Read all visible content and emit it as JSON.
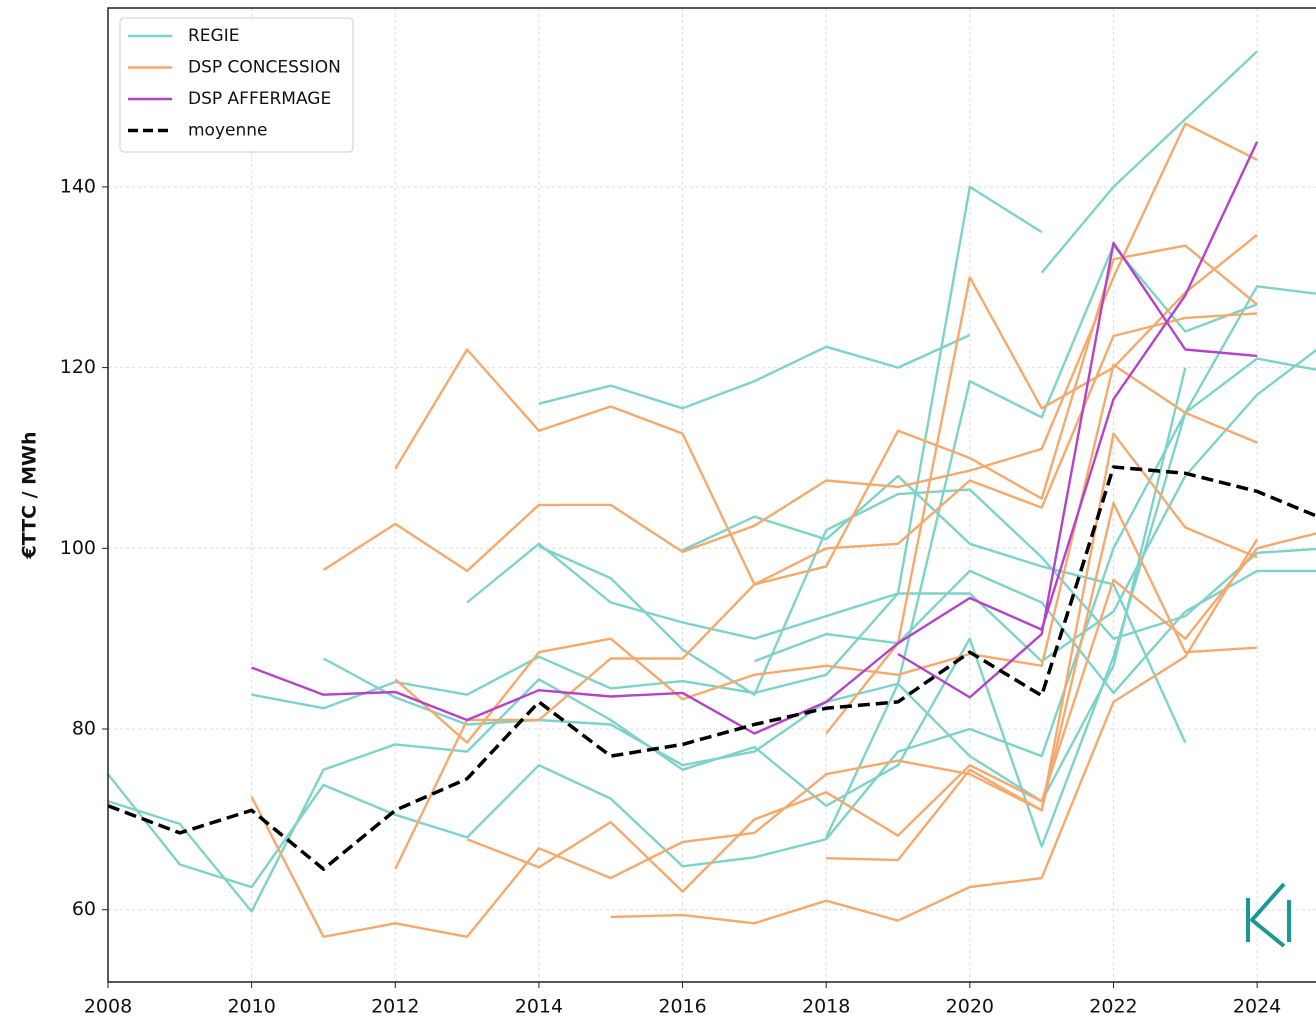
{
  "chart_data": {
    "type": "line",
    "ylabel": "€TTC / MWh",
    "x": [
      2008,
      2009,
      2010,
      2011,
      2012,
      2013,
      2014,
      2015,
      2016,
      2017,
      2018,
      2019,
      2020,
      2021,
      2022,
      2023,
      2024,
      2025
    ],
    "xlim": [
      2008,
      2024.82
    ],
    "xticks": [
      2008,
      2010,
      2012,
      2014,
      2016,
      2018,
      2020,
      2022,
      2024
    ],
    "ylim": [
      52,
      159.8
    ],
    "yticks": [
      60,
      80,
      100,
      120,
      140
    ],
    "grid": true,
    "legend": "upper left",
    "series": [
      {
        "name": "REGIE",
        "color": "#7dd3c9",
        "linestyle": "solid",
        "lines": [
          [
            null,
            null,
            null,
            null,
            null,
            null,
            116,
            118,
            115.5,
            118.5,
            122.3,
            120,
            123.6,
            null,
            null,
            null,
            null,
            null
          ],
          [
            75,
            65,
            62.5,
            73.8,
            70.5,
            68,
            76,
            72.3,
            64.8,
            65.8,
            67.8,
            77.5,
            80,
            77,
            100,
            115,
            121,
            119.5
          ],
          [
            72,
            69.5,
            59.8,
            75.5,
            78.3,
            77.5,
            85.5,
            81,
            75.5,
            78,
            71.5,
            76,
            90,
            67,
            88,
            115,
            129,
            128
          ],
          [
            null,
            null,
            83.8,
            82.3,
            85.2,
            83.8,
            88,
            84.5,
            85.3,
            84,
            86,
            95,
            140,
            135,
            null,
            null,
            null,
            null
          ],
          [
            null,
            null,
            null,
            null,
            null,
            null,
            null,
            null,
            null,
            null,
            null,
            null,
            null,
            130.5,
            140,
            147.5,
            155,
            null
          ],
          [
            null,
            null,
            null,
            87.8,
            83.5,
            80.5,
            81,
            80.5,
            76,
            77.5,
            83,
            85,
            118.5,
            114.5,
            133.5,
            124,
            127,
            null
          ],
          [
            null,
            null,
            null,
            null,
            null,
            94,
            100.5,
            94,
            91.8,
            90,
            92.5,
            95,
            95,
            87.5,
            93,
            108,
            117,
            123
          ],
          [
            null,
            null,
            null,
            null,
            null,
            null,
            100.2,
            96.7,
            88.8,
            83.8,
            102,
            106,
            106.5,
            99,
            90,
            92.5,
            99.5,
            100
          ],
          [
            null,
            null,
            null,
            null,
            null,
            null,
            null,
            null,
            99.8,
            103.5,
            101,
            108,
            100.5,
            98,
            96,
            78.5,
            null,
            null
          ],
          [
            null,
            null,
            null,
            null,
            null,
            null,
            null,
            null,
            null,
            87.5,
            90.5,
            89.5,
            97.5,
            94,
            84,
            93,
            97.5,
            97.5
          ],
          [
            null,
            null,
            null,
            null,
            null,
            null,
            null,
            null,
            null,
            null,
            68,
            85,
            77,
            72,
            87,
            120,
            null,
            null
          ]
        ]
      },
      {
        "name": "DSP CONCESSION",
        "color": "#f5a96c",
        "linestyle": "solid",
        "lines": [
          [
            null,
            null,
            null,
            null,
            108.8,
            122,
            113,
            115.7,
            112.7,
            96,
            100,
            100.5,
            107.5,
            104.5,
            123.5,
            125.5,
            126,
            null
          ],
          [
            null,
            null,
            null,
            97.6,
            102.7,
            97.5,
            104.8,
            104.8,
            99.6,
            102.5,
            107.5,
            106.8,
            108.6,
            111,
            130,
            147,
            143,
            null
          ],
          [
            null,
            null,
            72.5,
            57,
            58.5,
            57,
            66.8,
            63.5,
            67.5,
            68.5,
            75,
            76.5,
            75,
            71,
            105,
            88.5,
            89,
            null
          ],
          [
            null,
            null,
            null,
            null,
            64.5,
            81,
            81,
            87.8,
            87.8,
            96,
            98,
            113,
            110,
            105.5,
            132,
            133.5,
            127,
            null
          ],
          [
            null,
            null,
            null,
            null,
            null,
            67.8,
            64.7,
            69.7,
            62,
            70,
            73,
            68.2,
            76,
            72,
            96.5,
            90,
            100,
            102
          ],
          [
            null,
            null,
            null,
            null,
            null,
            null,
            null,
            59.2,
            59.4,
            58.5,
            61,
            58.8,
            62.5,
            63.5,
            83,
            88,
            101,
            null
          ],
          [
            null,
            null,
            null,
            null,
            85.5,
            78.5,
            88.5,
            90,
            83.3,
            86,
            87,
            86,
            88.3,
            87,
            120.3,
            115,
            111.7,
            null
          ],
          [
            null,
            null,
            null,
            null,
            null,
            null,
            null,
            null,
            null,
            null,
            79.5,
            89.5,
            130,
            115.5,
            120,
            128.3,
            134.7,
            null
          ],
          [
            null,
            null,
            null,
            null,
            null,
            null,
            null,
            null,
            null,
            null,
            65.7,
            65.5,
            75.5,
            71,
            112.7,
            102.3,
            99,
            null
          ]
        ]
      },
      {
        "name": "DSP AFFERMAGE",
        "color": "#b443c9",
        "linestyle": "solid",
        "lines": [
          [
            null,
            null,
            86.8,
            83.8,
            84.1,
            81,
            84.3,
            83.6,
            84,
            79.5,
            83,
            89.5,
            94.5,
            91,
            116.5,
            128,
            145,
            null
          ],
          [
            null,
            null,
            null,
            null,
            null,
            null,
            null,
            null,
            null,
            null,
            null,
            88.3,
            83.5,
            90.5,
            133.8,
            122,
            121.3,
            null
          ]
        ]
      },
      {
        "name": "moyenne",
        "color": "#000000",
        "linestyle": "dashed",
        "lines": [
          [
            71.5,
            68.5,
            71,
            64.5,
            71,
            74.5,
            83,
            77,
            78.3,
            80.5,
            82.3,
            83,
            88.5,
            83.7,
            109,
            108.3,
            106.3,
            103
          ]
        ]
      }
    ]
  }
}
